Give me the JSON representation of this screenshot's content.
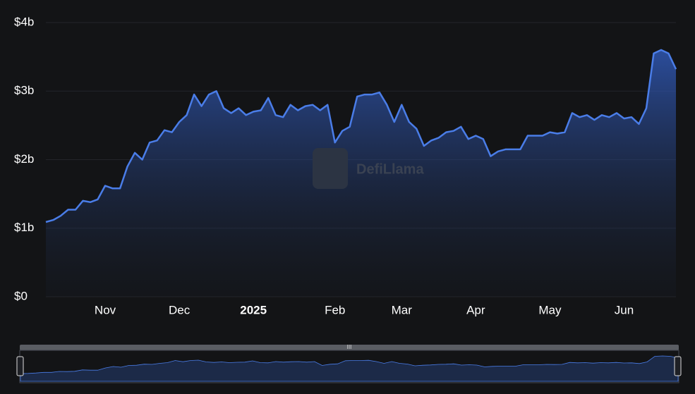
{
  "chart_data": {
    "type": "area",
    "watermark": "DefiLlama",
    "categories": [
      null,
      null,
      null,
      null,
      null,
      null,
      null,
      null,
      "Nov",
      null,
      null,
      null,
      null,
      null,
      null,
      null,
      null,
      null,
      "Dec",
      null,
      null,
      null,
      null,
      null,
      null,
      null,
      null,
      null,
      "2025",
      null,
      null,
      null,
      null,
      null,
      null,
      null,
      null,
      null,
      null,
      "Feb",
      null,
      null,
      null,
      null,
      null,
      null,
      null,
      null,
      "Mar",
      null,
      null,
      null,
      null,
      null,
      null,
      null,
      null,
      null,
      "Apr",
      null,
      null,
      null,
      null,
      null,
      null,
      null,
      null,
      null,
      "May",
      null,
      null,
      null,
      null,
      null,
      null,
      null,
      null,
      null,
      "Jun",
      null,
      null,
      null,
      null,
      null,
      null,
      null
    ],
    "values": [
      1.09,
      1.12,
      1.18,
      1.27,
      1.27,
      1.4,
      1.38,
      1.42,
      1.62,
      1.58,
      1.58,
      1.9,
      2.1,
      2.0,
      2.25,
      2.28,
      2.43,
      2.4,
      2.55,
      2.65,
      2.95,
      2.78,
      2.95,
      3.0,
      2.75,
      2.68,
      2.75,
      2.65,
      2.7,
      2.72,
      2.9,
      2.65,
      2.62,
      2.8,
      2.72,
      2.78,
      2.8,
      2.72,
      2.8,
      2.25,
      2.42,
      2.48,
      2.92,
      2.95,
      2.95,
      2.98,
      2.8,
      2.55,
      2.8,
      2.55,
      2.45,
      2.2,
      2.28,
      2.32,
      2.4,
      2.42,
      2.48,
      2.3,
      2.35,
      2.3,
      2.05,
      2.12,
      2.15,
      2.15,
      2.15,
      2.35,
      2.35,
      2.35,
      2.4,
      2.38,
      2.4,
      2.68,
      2.62,
      2.65,
      2.58,
      2.65,
      2.62,
      2.68,
      2.6,
      2.62,
      2.52,
      2.75,
      3.55,
      3.6,
      3.55,
      3.32
    ],
    "color": "#4a7de8",
    "ylim": [
      0,
      4
    ],
    "yticks": [
      {
        "value": 0,
        "label": "$0"
      },
      {
        "value": 1,
        "label": "$1b"
      },
      {
        "value": 2,
        "label": "$2b"
      },
      {
        "value": 3,
        "label": "$3b"
      },
      {
        "value": 4,
        "label": "$4b"
      }
    ],
    "grid": true
  }
}
